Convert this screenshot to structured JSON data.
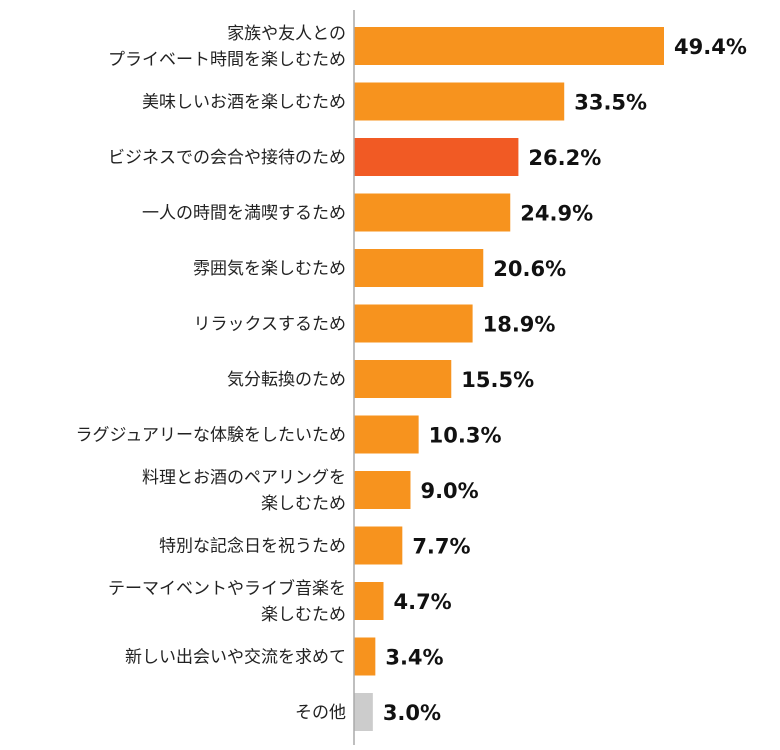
{
  "chart_data": {
    "type": "bar",
    "orientation": "horizontal",
    "title": "",
    "xlabel": "",
    "ylabel": "",
    "unit": "%",
    "categories": [
      [
        "家族や友人との",
        "プライベート時間を楽しむため"
      ],
      [
        "美味しいお酒を楽しむため"
      ],
      [
        "ビジネスでの会合や接待のため"
      ],
      [
        "一人の時間を満喫するため"
      ],
      [
        "雰囲気を楽しむため"
      ],
      [
        "リラックスするため"
      ],
      [
        "気分転換のため"
      ],
      [
        "ラグジュアリーな体験をしたいため"
      ],
      [
        "料理とお酒のペアリングを",
        "楽しむため"
      ],
      [
        "特別な記念日を祝うため"
      ],
      [
        "テーマイベントやライブ音楽を",
        "楽しむため"
      ],
      [
        "新しい出会いや交流を求めて"
      ],
      [
        "その他"
      ]
    ],
    "values": [
      49.4,
      33.5,
      26.2,
      24.9,
      20.6,
      18.9,
      15.5,
      10.3,
      9.0,
      7.7,
      4.7,
      3.4,
      3.0
    ],
    "value_labels": [
      "49.4%",
      "33.5%",
      "26.2%",
      "24.9%",
      "20.6%",
      "18.9%",
      "15.5%",
      "10.3%",
      "9.0%",
      "7.7%",
      "4.7%",
      "3.4%",
      "3.0%"
    ],
    "bar_colors": [
      "#f7931e",
      "#f7931e",
      "#f15a24",
      "#f7931e",
      "#f7931e",
      "#f7931e",
      "#f7931e",
      "#f7931e",
      "#f7931e",
      "#f7931e",
      "#f7931e",
      "#f7931e",
      "#cccccc"
    ],
    "highlight_index": 2,
    "grid": false,
    "legend": "none"
  }
}
